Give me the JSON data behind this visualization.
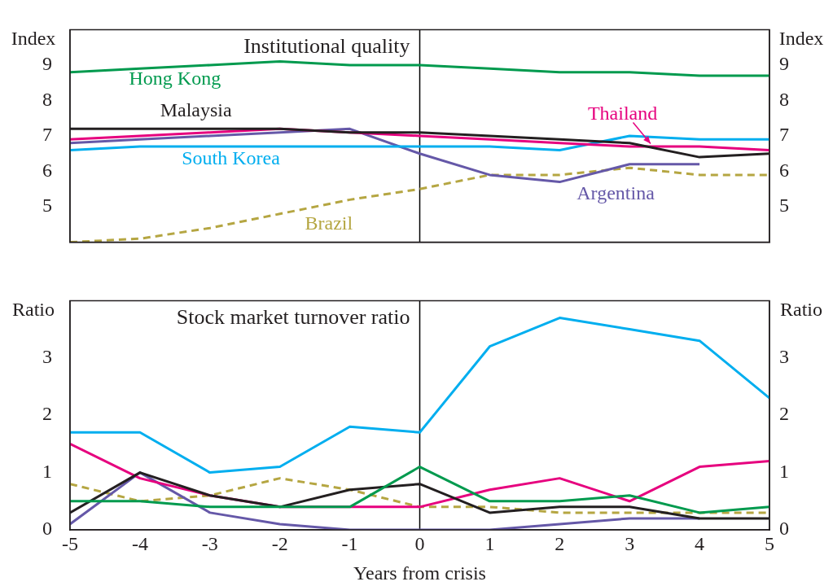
{
  "chart_data": [
    {
      "type": "line",
      "title": "Institutional quality",
      "ylabel": "Index",
      "y2label": "Index",
      "x": [
        -5,
        -4,
        -3,
        -2,
        -1,
        0,
        1,
        2,
        3,
        4,
        5
      ],
      "xlim": [
        -5,
        5
      ],
      "ylim": [
        4,
        10
      ],
      "yticks": [
        5,
        6,
        7,
        8,
        9
      ],
      "y2lim": [
        4,
        10
      ],
      "y2ticks": [
        5,
        6,
        7,
        8,
        9
      ],
      "tick_labels": "y",
      "grid": false,
      "legend": false,
      "marker": "none",
      "ref_lines": [
        {
          "axis": "x",
          "value": 0,
          "color": "#000000"
        }
      ],
      "series": [
        {
          "name": "Hong Kong",
          "color": "#009a4e",
          "values": [
            8.8,
            8.9,
            9.0,
            9.1,
            9.0,
            9.0,
            8.9,
            8.8,
            8.8,
            8.7,
            8.7
          ]
        },
        {
          "name": "Malaysia",
          "color": "#231f20",
          "values": [
            7.2,
            7.2,
            7.2,
            7.2,
            7.1,
            7.1,
            7.0,
            6.9,
            6.8,
            6.4,
            6.5
          ]
        },
        {
          "name": "Thailand",
          "color": "#e6007e",
          "values": [
            6.9,
            7.0,
            7.1,
            7.2,
            7.1,
            7.0,
            6.9,
            6.8,
            6.7,
            6.7,
            6.6
          ]
        },
        {
          "name": "South Korea",
          "color": "#00aeef",
          "values": [
            6.6,
            6.7,
            6.7,
            6.7,
            6.7,
            6.7,
            6.7,
            6.6,
            7.0,
            6.9,
            6.9
          ]
        },
        {
          "name": "Argentina",
          "color": "#6558a8",
          "values": [
            6.8,
            6.9,
            7.0,
            7.1,
            7.2,
            6.5,
            5.9,
            5.7,
            6.2,
            6.2,
            null
          ]
        },
        {
          "name": "Brazil",
          "color": "#b5a642",
          "line_style": "dashed",
          "values": [
            4.0,
            4.1,
            4.4,
            4.8,
            5.2,
            5.5,
            5.9,
            5.9,
            6.1,
            5.9,
            5.9
          ]
        }
      ]
    },
    {
      "type": "line",
      "title": "Stock market turnover ratio",
      "ylabel": "Ratio",
      "y2label": "Ratio",
      "xlabel": "Years from crisis",
      "x": [
        -5,
        -4,
        -3,
        -2,
        -1,
        0,
        1,
        2,
        3,
        4,
        5
      ],
      "xlim": [
        -5,
        5
      ],
      "xticks": [
        -5,
        -4,
        -3,
        -2,
        -1,
        0,
        1,
        2,
        3,
        4,
        5
      ],
      "ylim": [
        0,
        4
      ],
      "yticks": [
        0,
        1,
        2,
        3
      ],
      "y2lim": [
        0,
        4
      ],
      "y2ticks": [
        0,
        1,
        2,
        3
      ],
      "grid": false,
      "legend": false,
      "marker": "none",
      "ref_lines": [
        {
          "axis": "x",
          "value": 0,
          "color": "#000000"
        }
      ],
      "series": [
        {
          "color": "#009a4e",
          "values": [
            0.5,
            0.5,
            0.4,
            0.4,
            0.4,
            1.1,
            0.5,
            0.5,
            0.6,
            0.3,
            0.4
          ]
        },
        {
          "color": "#231f20",
          "values": [
            0.3,
            1.0,
            0.6,
            0.4,
            0.7,
            0.8,
            0.3,
            0.4,
            0.4,
            0.2,
            0.2
          ]
        },
        {
          "color": "#e6007e",
          "values": [
            1.5,
            0.9,
            0.6,
            0.4,
            0.4,
            0.4,
            0.7,
            0.9,
            0.5,
            1.1,
            1.2
          ]
        },
        {
          "color": "#00aeef",
          "values": [
            1.7,
            1.7,
            1.0,
            1.1,
            1.8,
            1.7,
            3.2,
            3.7,
            3.5,
            3.3,
            2.3
          ]
        },
        {
          "color": "#6558a8",
          "values": [
            0.1,
            1.0,
            0.3,
            0.1,
            0.0,
            0.0,
            0.0,
            0.1,
            0.2,
            0.2,
            null
          ]
        },
        {
          "color": "#b5a642",
          "line_style": "dashed",
          "values": [
            0.8,
            0.5,
            0.6,
            0.9,
            0.7,
            0.4,
            0.4,
            0.3,
            0.3,
            0.3,
            0.3
          ]
        }
      ]
    }
  ]
}
